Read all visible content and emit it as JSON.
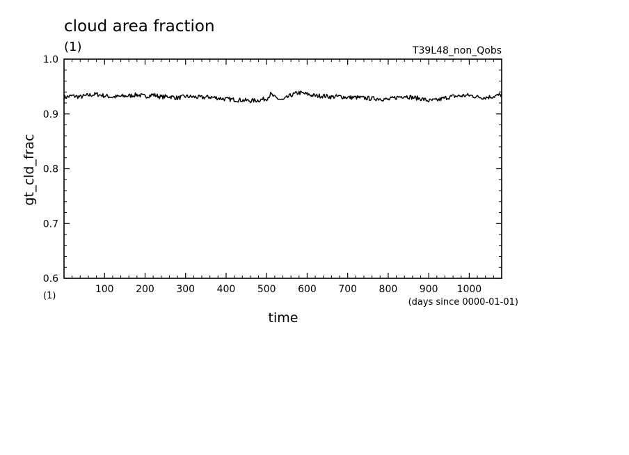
{
  "chart_data": {
    "type": "line",
    "title": "cloud area fraction",
    "units_label": "(1)",
    "experiment_label": "T39L48_non_Qobs",
    "xlabel": "time",
    "xunits": "(days since 0000-01-01)",
    "ylabel": "gt_cld_frac",
    "yunits": "(1)",
    "xlim": [
      0,
      1080
    ],
    "ylim": [
      0.6,
      1.0
    ],
    "xticks": [
      100,
      200,
      300,
      400,
      500,
      600,
      700,
      800,
      900,
      1000
    ],
    "xtick_labels": [
      "100",
      "200",
      "300",
      "400",
      "500",
      "600",
      "700",
      "800",
      "900",
      "1000"
    ],
    "yticks": [
      0.6,
      0.7,
      0.8,
      0.9,
      1.0
    ],
    "ytick_labels": [
      "0.6",
      "0.7",
      "0.8",
      "0.9",
      "1.0"
    ],
    "grid": false,
    "series": [
      {
        "x": [
          0,
          20,
          40,
          60,
          80,
          100,
          120,
          140,
          160,
          180,
          200,
          220,
          240,
          260,
          280,
          300,
          320,
          340,
          360,
          380,
          400,
          420,
          440,
          460,
          480,
          500,
          510,
          520,
          540,
          560,
          580,
          600,
          620,
          640,
          660,
          680,
          700,
          720,
          740,
          760,
          780,
          800,
          820,
          840,
          860,
          880,
          900,
          920,
          940,
          960,
          980,
          1000,
          1020,
          1040,
          1060,
          1080
        ],
        "y": [
          0.93,
          0.933,
          0.931,
          0.934,
          0.936,
          0.933,
          0.931,
          0.932,
          0.933,
          0.935,
          0.932,
          0.935,
          0.931,
          0.932,
          0.929,
          0.932,
          0.931,
          0.93,
          0.931,
          0.929,
          0.927,
          0.926,
          0.925,
          0.924,
          0.925,
          0.928,
          0.936,
          0.93,
          0.925,
          0.934,
          0.939,
          0.936,
          0.933,
          0.933,
          0.931,
          0.932,
          0.93,
          0.93,
          0.929,
          0.928,
          0.928,
          0.926,
          0.93,
          0.933,
          0.93,
          0.928,
          0.924,
          0.925,
          0.929,
          0.932,
          0.933,
          0.934,
          0.931,
          0.93,
          0.932,
          0.935
        ]
      }
    ]
  }
}
